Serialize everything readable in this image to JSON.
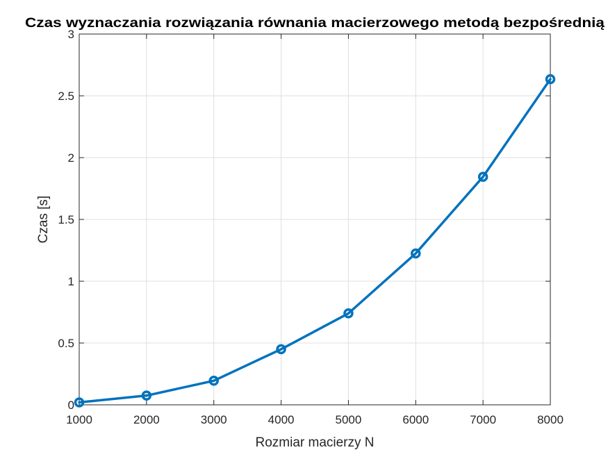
{
  "chart_data": {
    "type": "line",
    "title": "Czas wyznaczania rozwiązania równania macierzowego metodą bezpośrednią",
    "xlabel": "Rozmiar macierzy N",
    "ylabel": "Czas [s]",
    "xlim": [
      1000,
      8000
    ],
    "ylim": [
      0,
      3
    ],
    "xticks": [
      1000,
      2000,
      3000,
      4000,
      5000,
      6000,
      7000,
      8000
    ],
    "xtick_labels": [
      "1000",
      "2000",
      "3000",
      "4000",
      "5000",
      "6000",
      "7000",
      "8000"
    ],
    "yticks": [
      0,
      0.5,
      1,
      1.5,
      2,
      2.5,
      3
    ],
    "ytick_labels": [
      "0",
      "0.5",
      "1",
      "1.5",
      "2",
      "2.5",
      "3"
    ],
    "grid": true,
    "x": [
      1000,
      2000,
      3000,
      4000,
      5000,
      6000,
      7000,
      8000
    ],
    "series": [
      {
        "values": [
          0.02,
          0.075,
          0.195,
          0.45,
          0.74,
          1.225,
          1.845,
          2.635
        ],
        "color": "#0072bd",
        "marker": "circle"
      }
    ]
  }
}
